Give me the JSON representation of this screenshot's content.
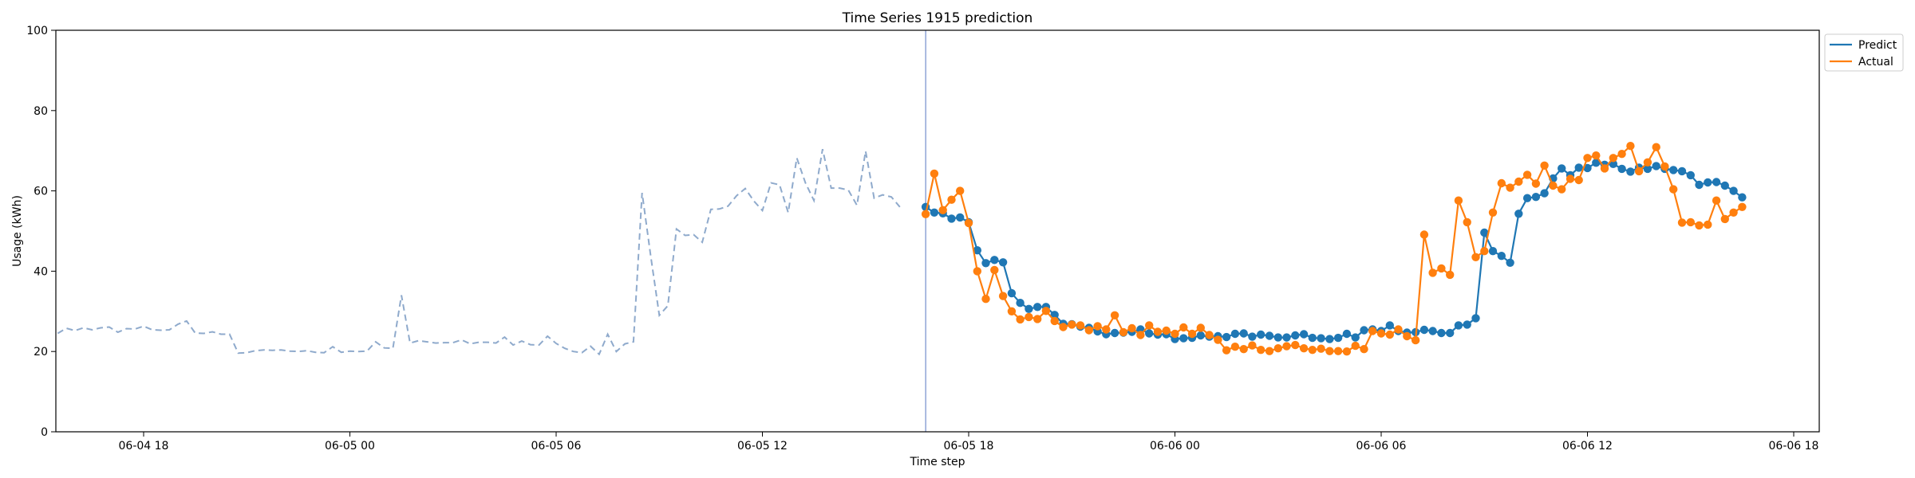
{
  "chart_data": {
    "type": "line",
    "title": "Time Series 1915 prediction",
    "xlabel": "Time step",
    "ylabel": "Usage (kWh)",
    "ylim": [
      0,
      100
    ],
    "yticks": [
      0,
      20,
      40,
      60,
      80,
      100
    ],
    "x_tick_labels": [
      "06-04 18",
      "06-05 00",
      "06-05 06",
      "06-05 12",
      "06-05 18",
      "06-06 00",
      "06-06 06",
      "06-06 12",
      "06-06 18"
    ],
    "legend_position": "top-right",
    "prediction_start": "06-05 16:45",
    "history": {
      "start": "06-04 15:30",
      "interval_minutes": 15,
      "values": [
        24.5,
        25.8,
        25.2,
        25.9,
        25.4,
        25.9,
        26.1,
        24.8,
        25.7,
        25.6,
        26.3,
        25.4,
        25.3,
        25.4,
        26.8,
        27.6,
        24.6,
        24.5,
        24.9,
        24.3,
        24.3,
        19.6,
        19.7,
        20.2,
        20.4,
        20.3,
        20.4,
        20.1,
        20.0,
        20.2,
        19.8,
        19.7,
        21.2,
        19.8,
        20.1,
        20.0,
        20.1,
        22.4,
        20.9,
        20.8,
        34.0,
        22.1,
        22.7,
        22.4,
        22.1,
        22.2,
        22.2,
        22.9,
        21.9,
        22.3,
        22.3,
        22.1,
        23.6,
        21.6,
        22.6,
        21.7,
        21.6,
        23.8,
        22.0,
        20.8,
        20.0,
        19.7,
        21.3,
        19.3,
        24.3,
        20.0,
        21.9,
        22.4,
        59.5,
        43.8,
        29.0,
        31.4,
        50.5,
        48.9,
        49.1,
        47.2,
        55.4,
        55.5,
        56.2,
        58.8,
        60.6,
        57.5,
        55.1,
        62.0,
        61.5,
        54.6,
        68.2,
        62.0,
        57.6,
        70.4,
        60.7,
        60.7,
        60.2,
        56.4,
        69.9,
        58.2,
        59.0,
        58.5,
        56.0
      ]
    },
    "forecast": {
      "start": "06-05 16:45",
      "interval_minutes": 15,
      "series": [
        {
          "name": "Predict",
          "color": "#1f77b4",
          "values": [
            56.0,
            54.6,
            54.4,
            53.1,
            53.4,
            52.2,
            45.2,
            42.0,
            42.8,
            42.2,
            34.5,
            32.1,
            30.6,
            31.1,
            31.1,
            29.1,
            26.9,
            26.8,
            26.2,
            25.9,
            25.0,
            24.3,
            24.6,
            24.7,
            24.9,
            25.5,
            24.5,
            24.2,
            24.3,
            23.1,
            23.3,
            23.4,
            24.0,
            23.7,
            23.8,
            23.6,
            24.4,
            24.5,
            23.7,
            24.2,
            23.9,
            23.5,
            23.5,
            24.0,
            24.3,
            23.4,
            23.3,
            23.1,
            23.4,
            24.4,
            23.5,
            25.3,
            25.5,
            25.1,
            26.5,
            25.1,
            24.7,
            24.8,
            25.4,
            25.1,
            24.6,
            24.6,
            26.5,
            26.7,
            28.3,
            49.6,
            45.0,
            43.8,
            42.1,
            54.3,
            58.2,
            58.5,
            59.4,
            63.1,
            65.6,
            63.9,
            65.8,
            65.7,
            67.0,
            66.5,
            66.7,
            65.5,
            64.8,
            65.8,
            65.5,
            66.2,
            65.5,
            65.2,
            64.9,
            63.9,
            61.5,
            62.1,
            62.2,
            61.3,
            60.0,
            58.4
          ]
        },
        {
          "name": "Actual",
          "color": "#ff7f0e",
          "values": [
            54.2,
            64.3,
            55.2,
            57.8,
            60.0,
            52.0,
            40.0,
            33.1,
            40.3,
            33.8,
            30.0,
            28.0,
            28.6,
            28.1,
            30.1,
            27.6,
            26.1,
            26.7,
            26.5,
            25.3,
            26.3,
            25.5,
            29.0,
            24.8,
            25.8,
            24.1,
            26.5,
            24.9,
            25.2,
            24.4,
            26.0,
            24.4,
            25.9,
            24.1,
            22.9,
            20.3,
            21.2,
            20.6,
            21.5,
            20.4,
            20.1,
            20.8,
            21.3,
            21.6,
            20.8,
            20.4,
            20.7,
            20.1,
            20.1,
            20.0,
            21.4,
            20.6,
            25.1,
            24.5,
            24.2,
            25.5,
            23.8,
            22.8,
            49.1,
            39.6,
            40.7,
            39.1,
            57.6,
            52.2,
            43.5,
            45.0,
            54.6,
            61.9,
            60.8,
            62.3,
            64.0,
            61.8,
            66.3,
            61.3,
            60.4,
            63.0,
            62.7,
            68.2,
            68.8,
            65.6,
            68.2,
            69.2,
            71.2,
            64.9,
            67.1,
            70.9,
            66.1,
            60.4,
            52.1,
            52.2,
            51.4,
            51.6,
            57.6,
            53.0,
            54.6,
            56.0
          ]
        }
      ]
    }
  }
}
